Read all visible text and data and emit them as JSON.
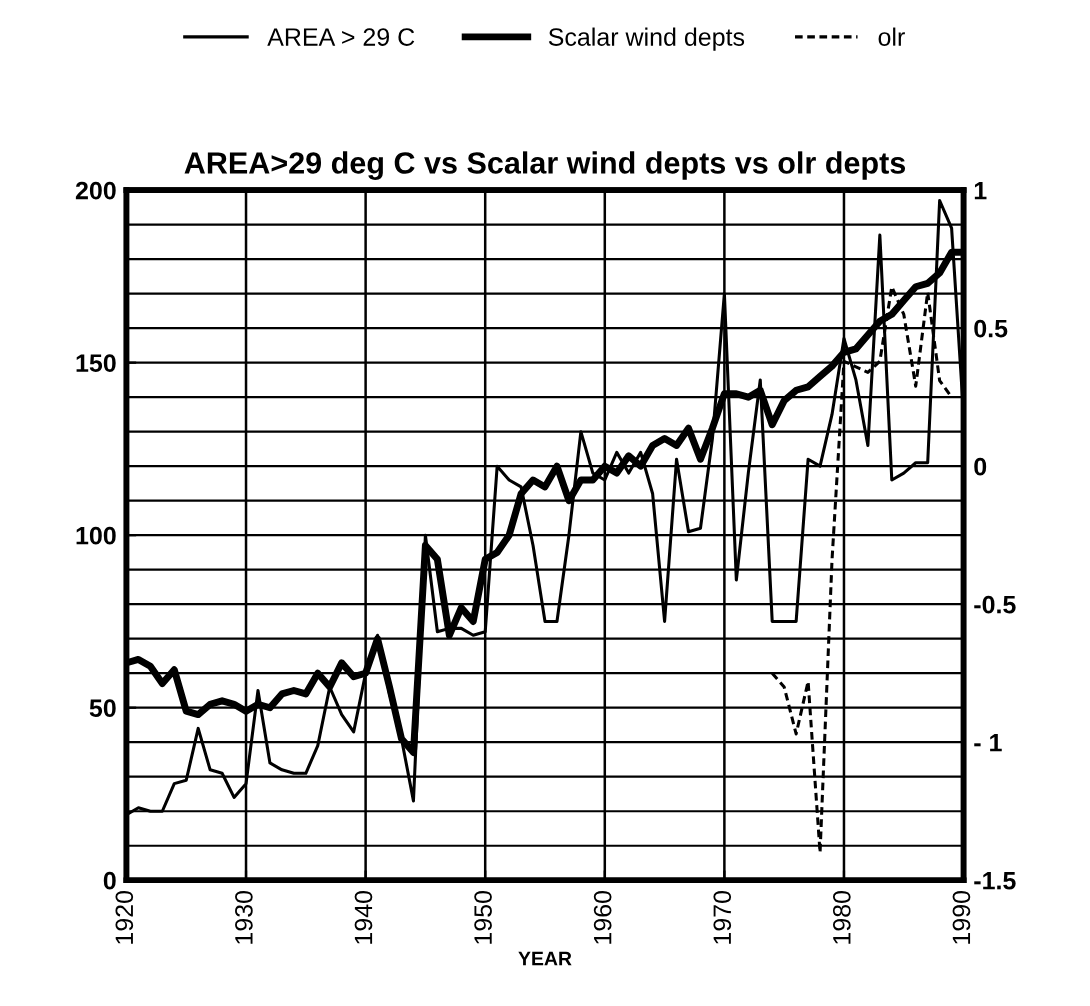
{
  "chart_data": {
    "type": "line",
    "title": "AREA>29 deg C vs Scalar wind depts vs olr depts",
    "xlabel": "YEAR",
    "xlim": [
      1920,
      1990
    ],
    "xticks": [
      1920,
      1930,
      1940,
      1950,
      1960,
      1970,
      1980,
      1990
    ],
    "ylim": [
      0,
      200
    ],
    "yticks": [
      0,
      50,
      100,
      150,
      200
    ],
    "y2lim": [
      -1.5,
      1
    ],
    "y2ticks": [
      {
        "value": -1.5,
        "label": "-1.5"
      },
      {
        "value": -1,
        "label": "- 1"
      },
      {
        "value": -0.5,
        "label": "-0.5"
      },
      0,
      0.5,
      1
    ],
    "grid": true,
    "legend": "top",
    "marker": "none",
    "series": [
      {
        "name": "AREA > 29 C",
        "color": "#000000",
        "line_style": "solid",
        "x": [
          1920,
          1921,
          1922,
          1923,
          1924,
          1925,
          1926,
          1927,
          1928,
          1929,
          1930,
          1931,
          1932,
          1933,
          1934,
          1935,
          1936,
          1937,
          1938,
          1939,
          1940,
          1941,
          1942,
          1943,
          1944,
          1945,
          1946,
          1947,
          1948,
          1949,
          1950,
          1951,
          1952,
          1953,
          1954,
          1955,
          1956,
          1957,
          1958,
          1959,
          1960,
          1961,
          1962,
          1963,
          1964,
          1965,
          1966,
          1967,
          1968,
          1969,
          1970,
          1971,
          1972,
          1973,
          1974,
          1975,
          1976,
          1977,
          1978,
          1979,
          1980,
          1981,
          1982,
          1983,
          1984,
          1985,
          1986,
          1987,
          1988,
          1989,
          1990
        ],
        "values": [
          19,
          21,
          20,
          20,
          28,
          29,
          44,
          32,
          31,
          24,
          28,
          55,
          34,
          32,
          31,
          31,
          39,
          56,
          48,
          43,
          60,
          71,
          54,
          41,
          23,
          100,
          72,
          73,
          73,
          71,
          72,
          120,
          116,
          114,
          97,
          75,
          75,
          100,
          130,
          118,
          116,
          124,
          118,
          124,
          112,
          75,
          122,
          101,
          102,
          128,
          170,
          87,
          118,
          145,
          75,
          75,
          75,
          122,
          120,
          135,
          157,
          145,
          126,
          187,
          116,
          118,
          121,
          121,
          197,
          189,
          135
        ]
      },
      {
        "name": "Scalar wind depts",
        "color": "#000000",
        "line_style": "solid",
        "x": [
          1920,
          1921,
          1922,
          1923,
          1924,
          1925,
          1926,
          1927,
          1928,
          1929,
          1930,
          1931,
          1932,
          1933,
          1934,
          1935,
          1936,
          1937,
          1938,
          1939,
          1940,
          1941,
          1942,
          1943,
          1944,
          1945,
          1946,
          1947,
          1948,
          1949,
          1950,
          1951,
          1952,
          1953,
          1954,
          1955,
          1956,
          1957,
          1958,
          1959,
          1960,
          1961,
          1962,
          1963,
          1964,
          1965,
          1966,
          1967,
          1968,
          1969,
          1970,
          1971,
          1972,
          1973,
          1974,
          1975,
          1976,
          1977,
          1978,
          1979,
          1980,
          1981,
          1982,
          1983,
          1984,
          1985,
          1986,
          1987,
          1988,
          1989,
          1990
        ],
        "values": [
          63,
          64,
          62,
          57,
          61,
          49,
          48,
          51,
          52,
          51,
          49,
          51,
          50,
          54,
          55,
          54,
          60,
          56,
          63,
          59,
          60,
          70,
          56,
          41,
          37,
          97,
          93,
          71,
          79,
          75,
          93,
          95,
          100,
          112,
          116,
          114,
          120,
          110,
          116,
          116,
          120,
          118,
          123,
          120,
          126,
          128,
          126,
          131,
          122,
          131,
          141,
          141,
          140,
          142,
          132,
          139,
          142,
          143,
          146,
          149,
          153,
          154,
          158,
          162,
          164,
          168,
          172,
          173,
          176,
          182,
          182
        ]
      },
      {
        "name": "olr",
        "color": "#000000",
        "line_style": "dashed",
        "axis": "y2",
        "x": [
          1974,
          1975,
          1976,
          1977,
          1978,
          1979,
          1980,
          1981,
          1982,
          1983,
          1984,
          1985,
          1986,
          1987,
          1988,
          1989
        ],
        "values": [
          -0.75,
          -0.8,
          -0.97,
          -0.78,
          -1.4,
          -0.34,
          0.38,
          0.36,
          0.34,
          0.38,
          0.65,
          0.55,
          0.29,
          0.63,
          0.31,
          0.25
        ]
      }
    ]
  }
}
